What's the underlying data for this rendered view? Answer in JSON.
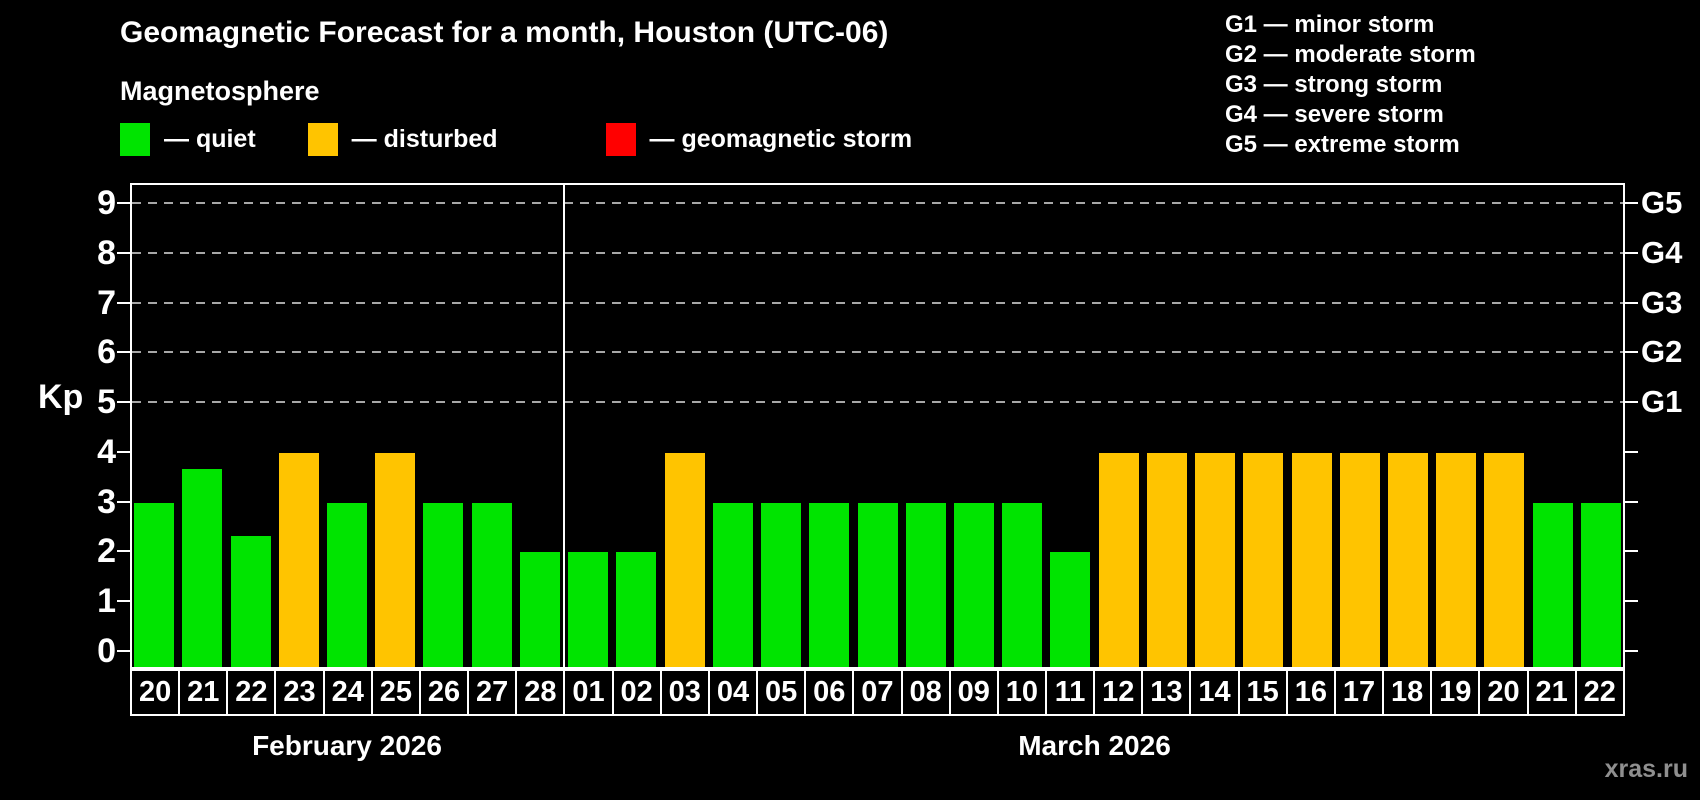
{
  "chart_data": {
    "type": "bar",
    "title": "Geomagnetic Forecast for a month, Houston (UTC-06)",
    "ylabel": "Kp",
    "xlabel": "",
    "ylim": [
      -0.375,
      9.375
    ],
    "yticks": [
      0,
      1,
      2,
      3,
      4,
      5,
      6,
      7,
      8,
      9
    ],
    "gridlines_at": [
      5,
      6,
      7,
      8,
      9
    ],
    "grid": "dashed horizontal lines at storm levels G1-G5 only",
    "legend_position": "top-left",
    "right_axis_labels": [
      {
        "kp": 5,
        "label": "G1"
      },
      {
        "kp": 6,
        "label": "G2"
      },
      {
        "kp": 7,
        "label": "G3"
      },
      {
        "kp": 8,
        "label": "G4"
      },
      {
        "kp": 9,
        "label": "G5"
      }
    ],
    "months": [
      {
        "label": "February 2026"
      },
      {
        "label": "March 2026"
      }
    ],
    "bars": [
      {
        "month": "February 2026",
        "day": "20",
        "kp": 3,
        "state": "quiet"
      },
      {
        "month": "February 2026",
        "day": "21",
        "kp": 3.67,
        "state": "quiet"
      },
      {
        "month": "February 2026",
        "day": "22",
        "kp": 2.33,
        "state": "quiet"
      },
      {
        "month": "February 2026",
        "day": "23",
        "kp": 4,
        "state": "disturbed"
      },
      {
        "month": "February 2026",
        "day": "24",
        "kp": 3,
        "state": "quiet"
      },
      {
        "month": "February 2026",
        "day": "25",
        "kp": 4,
        "state": "disturbed"
      },
      {
        "month": "February 2026",
        "day": "26",
        "kp": 3,
        "state": "quiet"
      },
      {
        "month": "February 2026",
        "day": "27",
        "kp": 3,
        "state": "quiet"
      },
      {
        "month": "February 2026",
        "day": "28",
        "kp": 2,
        "state": "quiet"
      },
      {
        "month": "March 2026",
        "day": "01",
        "kp": 2,
        "state": "quiet"
      },
      {
        "month": "March 2026",
        "day": "02",
        "kp": 2,
        "state": "quiet"
      },
      {
        "month": "March 2026",
        "day": "03",
        "kp": 4,
        "state": "disturbed"
      },
      {
        "month": "March 2026",
        "day": "04",
        "kp": 3,
        "state": "quiet"
      },
      {
        "month": "March 2026",
        "day": "05",
        "kp": 3,
        "state": "quiet"
      },
      {
        "month": "March 2026",
        "day": "06",
        "kp": 3,
        "state": "quiet"
      },
      {
        "month": "March 2026",
        "day": "07",
        "kp": 3,
        "state": "quiet"
      },
      {
        "month": "March 2026",
        "day": "08",
        "kp": 3,
        "state": "quiet"
      },
      {
        "month": "March 2026",
        "day": "09",
        "kp": 3,
        "state": "quiet"
      },
      {
        "month": "March 2026",
        "day": "10",
        "kp": 3,
        "state": "quiet"
      },
      {
        "month": "March 2026",
        "day": "11",
        "kp": 2,
        "state": "quiet"
      },
      {
        "month": "March 2026",
        "day": "12",
        "kp": 4,
        "state": "disturbed"
      },
      {
        "month": "March 2026",
        "day": "13",
        "kp": 4,
        "state": "disturbed"
      },
      {
        "month": "March 2026",
        "day": "14",
        "kp": 4,
        "state": "disturbed"
      },
      {
        "month": "March 2026",
        "day": "15",
        "kp": 4,
        "state": "disturbed"
      },
      {
        "month": "March 2026",
        "day": "16",
        "kp": 4,
        "state": "disturbed"
      },
      {
        "month": "March 2026",
        "day": "17",
        "kp": 4,
        "state": "disturbed"
      },
      {
        "month": "March 2026",
        "day": "18",
        "kp": 4,
        "state": "disturbed"
      },
      {
        "month": "March 2026",
        "day": "19",
        "kp": 4,
        "state": "disturbed"
      },
      {
        "month": "March 2026",
        "day": "20",
        "kp": 4,
        "state": "disturbed"
      },
      {
        "month": "March 2026",
        "day": "21",
        "kp": 3,
        "state": "quiet"
      },
      {
        "month": "March 2026",
        "day": "22",
        "kp": 3,
        "state": "quiet"
      }
    ]
  },
  "legend": {
    "title": "Magnetosphere",
    "items": [
      {
        "state": "quiet",
        "label": "— quiet",
        "color": "#00e400"
      },
      {
        "state": "disturbed",
        "label": "— disturbed",
        "color": "#ffc400"
      },
      {
        "state": "storm",
        "label": "— geomagnetic storm",
        "color": "#ff0000"
      }
    ]
  },
  "g_legend": {
    "lines": [
      "G1 — minor storm",
      "G2 — moderate storm",
      "G3 — strong storm",
      "G4 — severe storm",
      "G5 — extreme storm"
    ]
  },
  "colors": {
    "background": "#000000",
    "axis": "#ffffff",
    "gridline": "#a7a7a7",
    "quiet": "#00e400",
    "disturbed": "#ffc400",
    "storm": "#ff0000",
    "watermark": "#8f8f8f"
  },
  "watermark": "xras.ru"
}
